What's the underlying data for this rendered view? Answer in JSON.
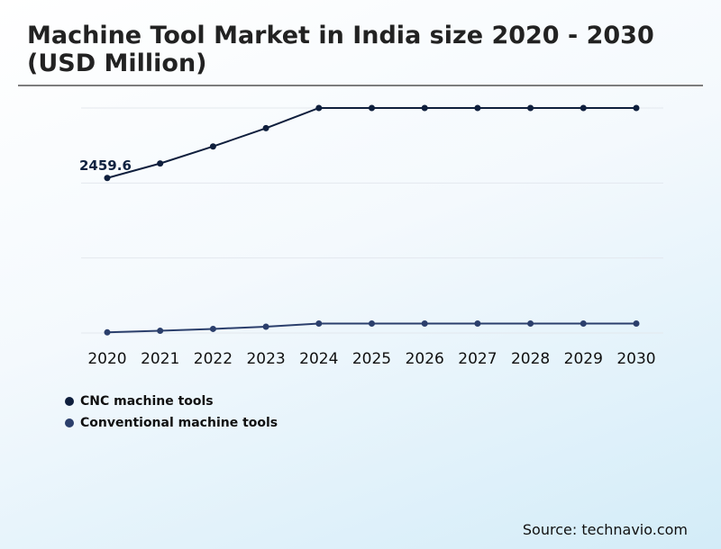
{
  "title": "Machine Tool Market in India size 2020 - 2030 (USD Million)",
  "source": "Source: technavio.com",
  "chart_data": {
    "type": "line",
    "title": "Machine Tool Market in India size 2020 - 2030 (USD Million)",
    "x": [
      "2020",
      "2021",
      "2022",
      "2023",
      "2024",
      "2025",
      "2026",
      "2027",
      "2028",
      "2029",
      "2030"
    ],
    "series": [
      {
        "name": "CNC machine tools",
        "color": "#0f1f3d",
        "values": [
          2459.6,
          2690,
          2960,
          3250,
          3570,
          3570,
          3570,
          3570,
          3570,
          3570,
          3570
        ],
        "data_labels": [
          {
            "index": 0,
            "text": "2459.6"
          }
        ]
      },
      {
        "name": "Conventional machine tools",
        "color": "#2b3f6c",
        "values": [
          10,
          35,
          65,
          100,
          150,
          150,
          150,
          150,
          150,
          150,
          150
        ]
      }
    ],
    "ylim": [
      0,
      3570
    ],
    "grid": true,
    "y_tick_labels_shown": false,
    "legend_position": "bottom-left"
  }
}
